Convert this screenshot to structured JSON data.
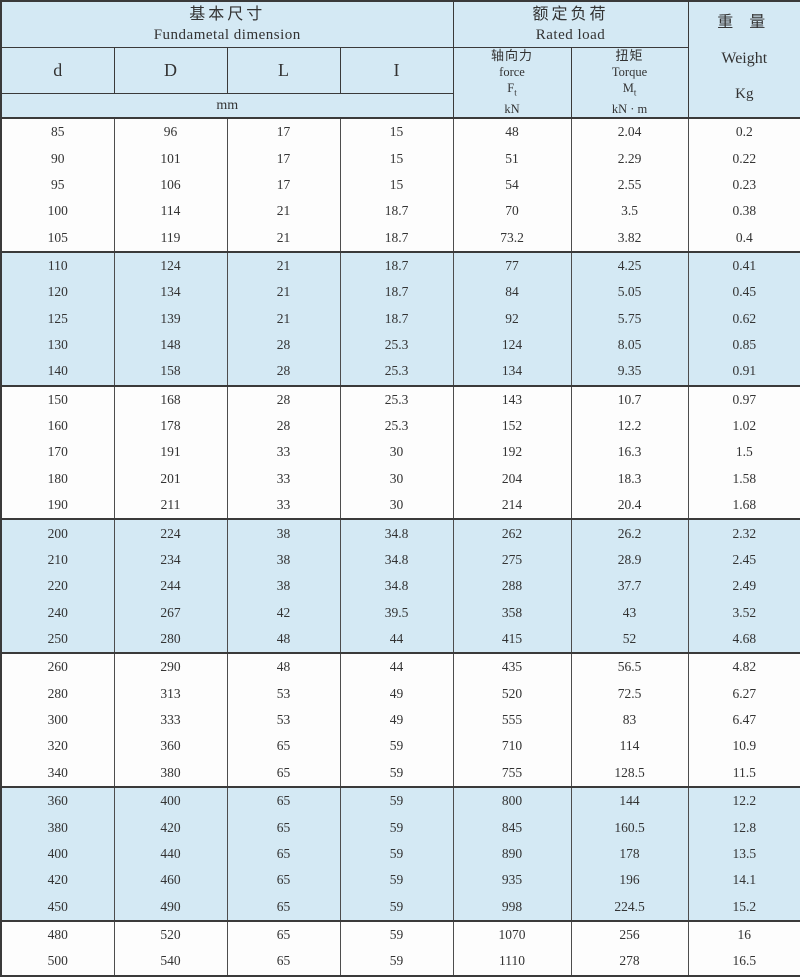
{
  "colors": {
    "band_blue": "#d4e9f4",
    "row_white": "#fdfdfd",
    "border_dark": "#3a3a3a",
    "border_light": "#4d4d4d",
    "text": "#333333"
  },
  "table": {
    "header": {
      "dimension_group": {
        "zh": "基本尺寸",
        "en": "Fundametal dimension"
      },
      "rated_load_group": {
        "zh": "额定负荷",
        "en": "Rated load"
      },
      "weight_group": {
        "zh": "重 量",
        "en": "Weight",
        "unit": "Kg"
      },
      "dim_cols": [
        "d",
        "D",
        "L",
        "I"
      ],
      "dim_unit": "mm",
      "force_col": {
        "zh": "轴向力",
        "en": "force",
        "symbol": "F",
        "sub": "t",
        "unit": "kN"
      },
      "torque_col": {
        "zh": "扭矩",
        "en": "Torque",
        "symbol": "M",
        "sub": "t",
        "unit": "kN · m"
      }
    },
    "rows": [
      [
        "85",
        "96",
        "17",
        "15",
        "48",
        "2.04",
        "0.2"
      ],
      [
        "90",
        "101",
        "17",
        "15",
        "51",
        "2.29",
        "0.22"
      ],
      [
        "95",
        "106",
        "17",
        "15",
        "54",
        "2.55",
        "0.23"
      ],
      [
        "100",
        "114",
        "21",
        "18.7",
        "70",
        "3.5",
        "0.38"
      ],
      [
        "105",
        "119",
        "21",
        "18.7",
        "73.2",
        "3.82",
        "0.4"
      ],
      [
        "110",
        "124",
        "21",
        "18.7",
        "77",
        "4.25",
        "0.41"
      ],
      [
        "120",
        "134",
        "21",
        "18.7",
        "84",
        "5.05",
        "0.45"
      ],
      [
        "125",
        "139",
        "21",
        "18.7",
        "92",
        "5.75",
        "0.62"
      ],
      [
        "130",
        "148",
        "28",
        "25.3",
        "124",
        "8.05",
        "0.85"
      ],
      [
        "140",
        "158",
        "28",
        "25.3",
        "134",
        "9.35",
        "0.91"
      ],
      [
        "150",
        "168",
        "28",
        "25.3",
        "143",
        "10.7",
        "0.97"
      ],
      [
        "160",
        "178",
        "28",
        "25.3",
        "152",
        "12.2",
        "1.02"
      ],
      [
        "170",
        "191",
        "33",
        "30",
        "192",
        "16.3",
        "1.5"
      ],
      [
        "180",
        "201",
        "33",
        "30",
        "204",
        "18.3",
        "1.58"
      ],
      [
        "190",
        "211",
        "33",
        "30",
        "214",
        "20.4",
        "1.68"
      ],
      [
        "200",
        "224",
        "38",
        "34.8",
        "262",
        "26.2",
        "2.32"
      ],
      [
        "210",
        "234",
        "38",
        "34.8",
        "275",
        "28.9",
        "2.45"
      ],
      [
        "220",
        "244",
        "38",
        "34.8",
        "288",
        "37.7",
        "2.49"
      ],
      [
        "240",
        "267",
        "42",
        "39.5",
        "358",
        "43",
        "3.52"
      ],
      [
        "250",
        "280",
        "48",
        "44",
        "415",
        "52",
        "4.68"
      ],
      [
        "260",
        "290",
        "48",
        "44",
        "435",
        "56.5",
        "4.82"
      ],
      [
        "280",
        "313",
        "53",
        "49",
        "520",
        "72.5",
        "6.27"
      ],
      [
        "300",
        "333",
        "53",
        "49",
        "555",
        "83",
        "6.47"
      ],
      [
        "320",
        "360",
        "65",
        "59",
        "710",
        "114",
        "10.9"
      ],
      [
        "340",
        "380",
        "65",
        "59",
        "755",
        "128.5",
        "11.5"
      ],
      [
        "360",
        "400",
        "65",
        "59",
        "800",
        "144",
        "12.2"
      ],
      [
        "380",
        "420",
        "65",
        "59",
        "845",
        "160.5",
        "12.8"
      ],
      [
        "400",
        "440",
        "65",
        "59",
        "890",
        "178",
        "13.5"
      ],
      [
        "420",
        "460",
        "65",
        "59",
        "935",
        "196",
        "14.1"
      ],
      [
        "450",
        "490",
        "65",
        "59",
        "998",
        "224.5",
        "15.2"
      ],
      [
        "480",
        "520",
        "65",
        "59",
        "1070",
        "256",
        "16"
      ],
      [
        "500",
        "540",
        "65",
        "59",
        "1110",
        "278",
        "16.5"
      ]
    ]
  }
}
